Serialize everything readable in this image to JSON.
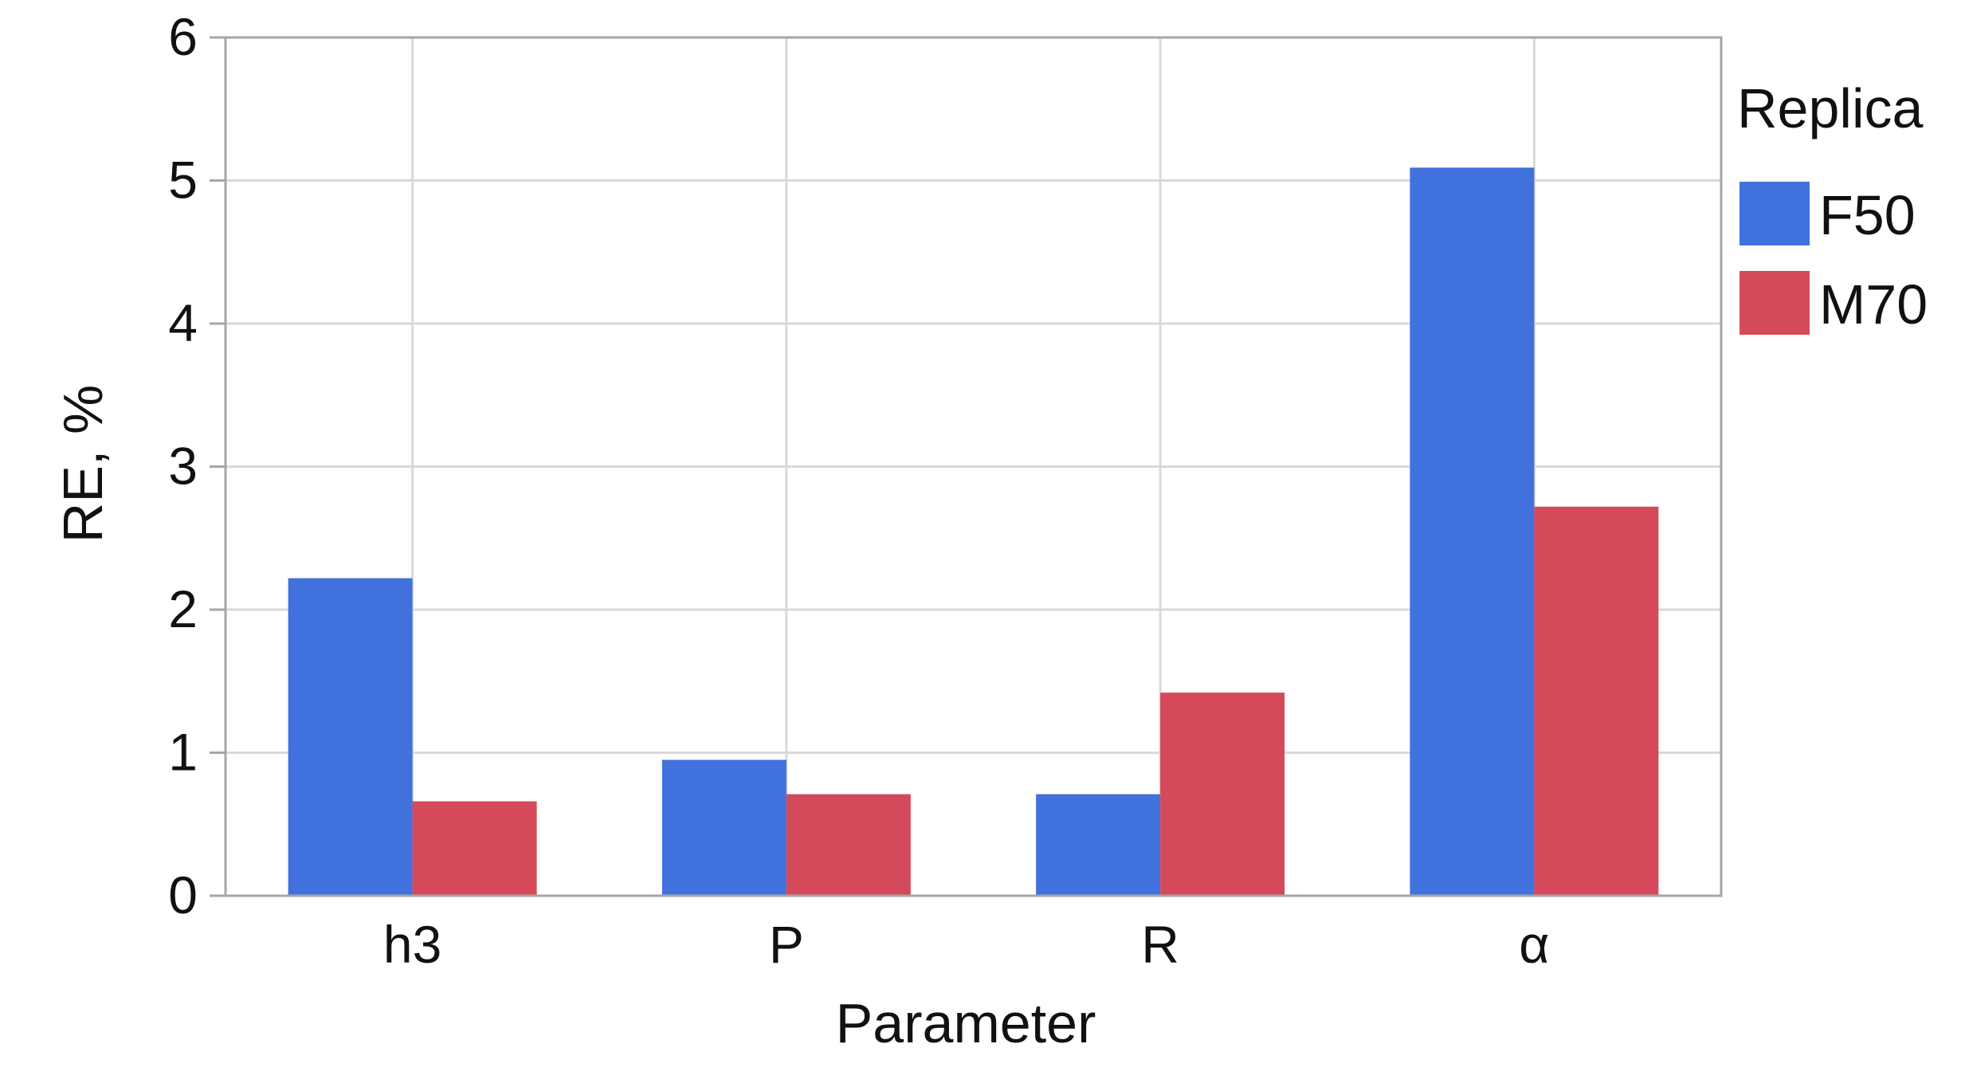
{
  "chart_data": {
    "type": "bar",
    "title": "",
    "xlabel": "Parameter",
    "ylabel": "RE, %",
    "categories": [
      "h3",
      "P",
      "R",
      "α"
    ],
    "series": [
      {
        "name": "F50",
        "color": "#4171dd",
        "values": [
          2.22,
          0.95,
          0.71,
          5.09
        ]
      },
      {
        "name": "M70",
        "color": "#d54a5a",
        "values": [
          0.66,
          0.71,
          1.42,
          2.72
        ]
      }
    ],
    "ylim": [
      0,
      6
    ],
    "yticks": [
      "0",
      "1",
      "2",
      "3",
      "4",
      "5",
      "6"
    ],
    "grid": true,
    "legend": {
      "title": "Replica",
      "placement": "right"
    }
  }
}
